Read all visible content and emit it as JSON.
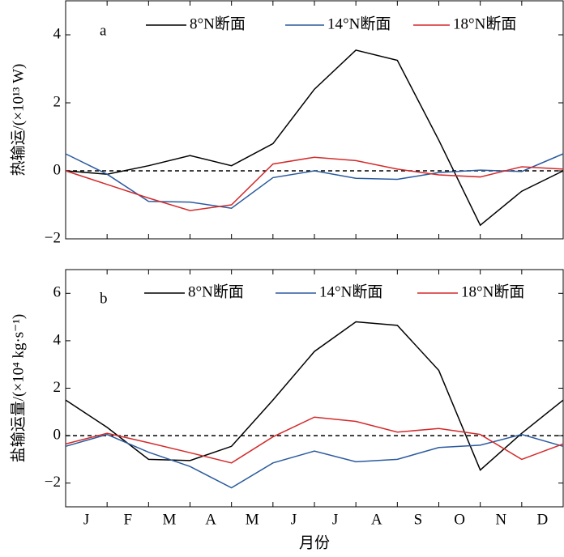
{
  "chart_data": [
    {
      "type": "line",
      "panel_label": "a",
      "y_label": "热输运/(×10¹³ W)",
      "x": [
        0,
        1,
        2,
        3,
        4,
        5,
        6,
        7,
        8,
        9,
        10,
        11,
        12
      ],
      "xlim": [
        0,
        12
      ],
      "ylim": [
        -2,
        5
      ],
      "yticks": [
        {
          "value": -2,
          "label": "−2"
        },
        0,
        2,
        4
      ],
      "zero_line": 0,
      "series": [
        {
          "name": "8°N断面",
          "color": "#000000",
          "values": [
            0,
            -0.1,
            0.15,
            0.45,
            0.15,
            0.8,
            2.4,
            3.55,
            3.25,
            0.9,
            -1.6,
            -0.6,
            0
          ]
        },
        {
          "name": "14°N断面",
          "color": "#2b5a9e",
          "values": [
            0.5,
            -0.1,
            -0.9,
            -0.92,
            -1.1,
            -0.2,
            0,
            -0.22,
            -0.25,
            -0.05,
            0.02,
            -0.02,
            0.5
          ]
        },
        {
          "name": "18°N断面",
          "color": "#d42a2a",
          "values": [
            0,
            -0.4,
            -0.8,
            -1.17,
            -1.0,
            0.2,
            0.4,
            0.3,
            0.05,
            -0.12,
            -0.18,
            0.12,
            0.05
          ]
        }
      ]
    },
    {
      "type": "line",
      "panel_label": "b",
      "y_label": "盐输运量/(×10⁴ kg·s⁻¹)",
      "x": [
        0,
        1,
        2,
        3,
        4,
        5,
        6,
        7,
        8,
        9,
        10,
        11,
        12
      ],
      "xlim": [
        0,
        12
      ],
      "ylim": [
        -3,
        7
      ],
      "yticks": [
        {
          "value": -2,
          "label": "−2"
        },
        0,
        2,
        4,
        6
      ],
      "zero_line": 0,
      "x_label": "月份",
      "month_labels": [
        "J",
        "F",
        "M",
        "A",
        "M",
        "J",
        "J",
        "A",
        "S",
        "O",
        "N",
        "D"
      ],
      "series": [
        {
          "name": "8°N断面",
          "color": "#000000",
          "values": [
            1.5,
            0.35,
            -1.0,
            -1.05,
            -0.45,
            1.5,
            3.55,
            4.8,
            4.65,
            2.75,
            -1.45,
            0.1,
            1.5
          ]
        },
        {
          "name": "14°N断面",
          "color": "#2b5a9e",
          "values": [
            -0.45,
            0.05,
            -0.7,
            -1.3,
            -2.2,
            -1.15,
            -0.65,
            -1.1,
            -1.0,
            -0.5,
            -0.4,
            0.05,
            -0.45
          ]
        },
        {
          "name": "18°N断面",
          "color": "#d42a2a",
          "values": [
            -0.35,
            0.1,
            -0.3,
            -0.72,
            -1.15,
            -0.05,
            0.78,
            0.6,
            0.15,
            0.3,
            0.05,
            -1.0,
            -0.35
          ]
        }
      ]
    }
  ]
}
